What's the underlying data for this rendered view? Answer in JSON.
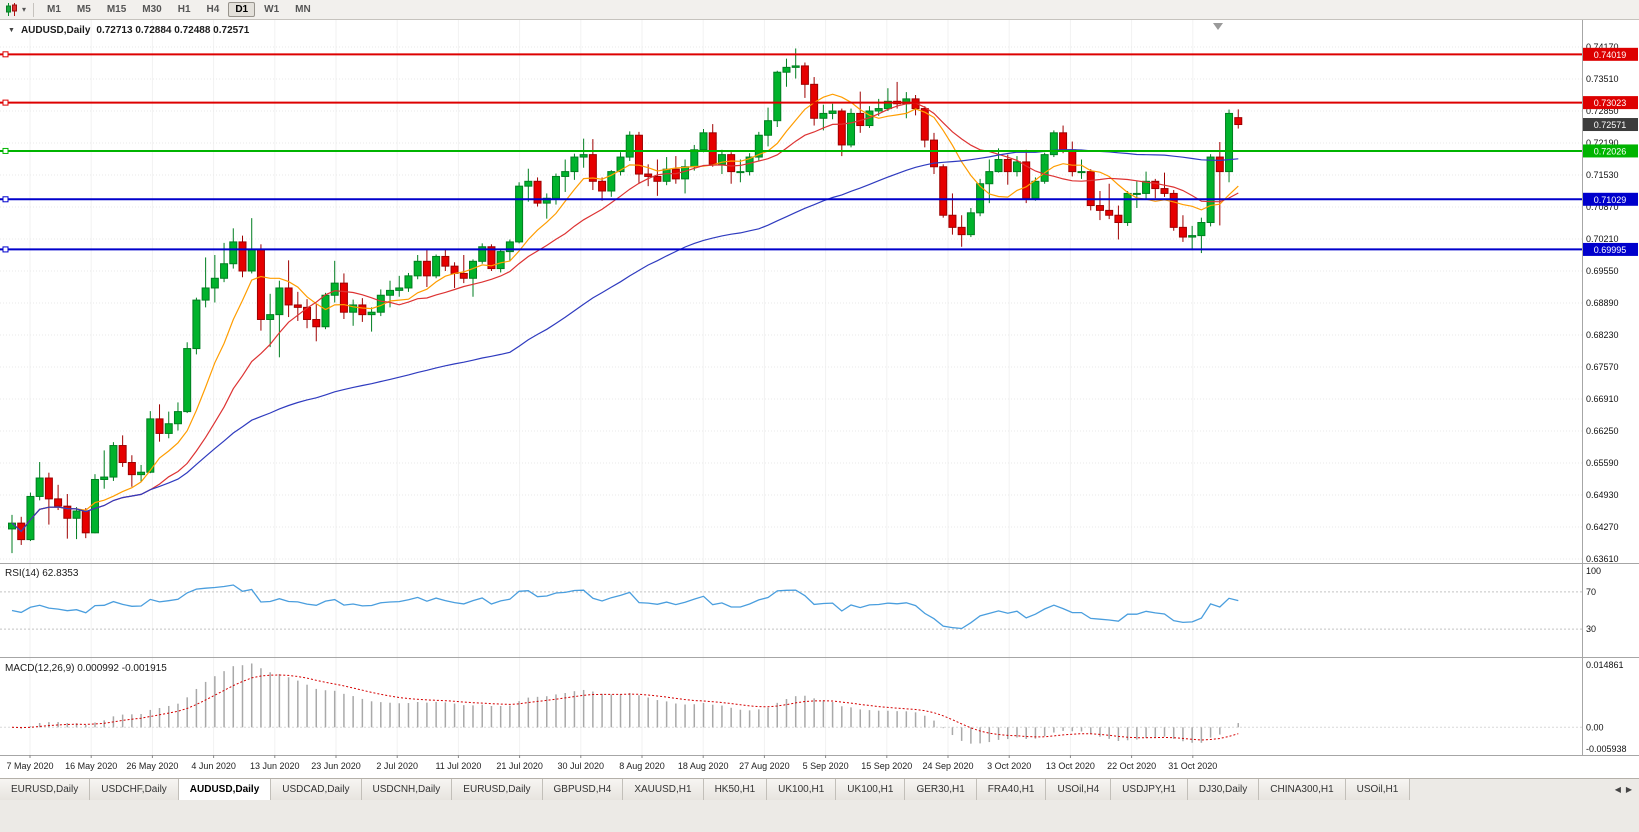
{
  "toolbar": {
    "timeframes": [
      {
        "label": "M1",
        "active": false
      },
      {
        "label": "M5",
        "active": false
      },
      {
        "label": "M15",
        "active": false
      },
      {
        "label": "M30",
        "active": false
      },
      {
        "label": "H1",
        "active": false
      },
      {
        "label": "H4",
        "active": false
      },
      {
        "label": "D1",
        "active": true
      },
      {
        "label": "W1",
        "active": false
      },
      {
        "label": "MN",
        "active": false
      }
    ]
  },
  "chart": {
    "title": "AUDUSD,Daily",
    "ohlc": "0.72713 0.72884 0.72488 0.72571"
  },
  "indicators_text": {
    "rsi_label": "RSI(14) 62.8353",
    "macd_label": "MACD(12,26,9) 0.000992 -0.001915"
  },
  "chart_data": {
    "type": "candlestick",
    "symbol": "AUDUSD",
    "timeframe": "Daily",
    "current_ohlc": {
      "open": 0.72713,
      "high": 0.72884,
      "low": 0.72488,
      "close": 0.72571
    },
    "price_axis_ticks": [
      0.7417,
      0.7351,
      0.7285,
      0.7219,
      0.7153,
      0.7087,
      0.7021,
      0.6955,
      0.6889,
      0.6823,
      0.6757,
      0.6691,
      0.6625,
      0.6559,
      0.6493,
      0.6427,
      0.6361
    ],
    "x_axis_dates": [
      "7 May 2020",
      "16 May 2020",
      "26 May 2020",
      "4 Jun 2020",
      "13 Jun 2020",
      "23 Jun 2020",
      "2 Jul 2020",
      "11 Jul 2020",
      "21 Jul 2020",
      "30 Jul 2020",
      "8 Aug 2020",
      "18 Aug 2020",
      "27 Aug 2020",
      "5 Sep 2020",
      "15 Sep 2020",
      "24 Sep 2020",
      "3 Oct 2020",
      "13 Oct 2020",
      "22 Oct 2020",
      "31 Oct 2020"
    ],
    "horizontal_lines": [
      {
        "value": 0.74019,
        "label": "0.74019",
        "color": "#dd0000",
        "kind": "resistance"
      },
      {
        "value": 0.73023,
        "label": "0.73023",
        "color": "#dd0000",
        "kind": "resistance"
      },
      {
        "value": 0.72026,
        "label": "0.72026",
        "color": "#00b400",
        "kind": "support"
      },
      {
        "value": 0.71029,
        "label": "0.71029",
        "color": "#0000cc",
        "kind": "support"
      },
      {
        "value": 0.69995,
        "label": "0.69995",
        "color": "#0000cc",
        "kind": "support"
      }
    ],
    "current_price": {
      "value": 0.72571,
      "label": "0.72571",
      "badge_color": "#3c3c3c"
    },
    "moving_averages": [
      {
        "period": 8,
        "color": "#ff9d00"
      },
      {
        "period": 16,
        "color": "#dd3333"
      },
      {
        "period": 55,
        "color": "#2f3bbf"
      }
    ],
    "rsi": {
      "period": 14,
      "value": 62.8353,
      "axis_labels": [
        "100",
        "70",
        "30"
      ],
      "levels": [
        70,
        30
      ]
    },
    "macd": {
      "fast": 12,
      "slow": 26,
      "signal": 9,
      "value": 0.000992,
      "signal_value": -0.001915,
      "axis_top": "0.014861",
      "axis_zero": "0.00",
      "axis_bottom": "-0.005938",
      "scale_max": 0.014861,
      "scale_min": -0.005938
    },
    "colors": {
      "bull": "#00b32c",
      "bull_border": "#007e20",
      "bear": "#e60000",
      "bear_border": "#9e0000",
      "grid": "#e9e9e9",
      "rsi_line": "#4a9ede",
      "rsi_level": "#c4c4c4",
      "macd_hist": "#a9a9a9",
      "macd_signal": "#d40000",
      "separator": "#a6a6a6",
      "current_badge": "#3c3c3c"
    },
    "candles": [
      [
        0.6423,
        0.6452,
        0.6373,
        0.6435
      ],
      [
        0.6435,
        0.6448,
        0.639,
        0.6401
      ],
      [
        0.6401,
        0.6498,
        0.6398,
        0.649
      ],
      [
        0.649,
        0.6561,
        0.6482,
        0.6528
      ],
      [
        0.6528,
        0.6539,
        0.6432,
        0.6485
      ],
      [
        0.6485,
        0.6514,
        0.6462,
        0.647
      ],
      [
        0.647,
        0.6495,
        0.6403,
        0.6445
      ],
      [
        0.6445,
        0.6468,
        0.6402,
        0.646
      ],
      [
        0.646,
        0.6466,
        0.6404,
        0.6415
      ],
      [
        0.6415,
        0.6536,
        0.6414,
        0.6525
      ],
      [
        0.6525,
        0.6585,
        0.6506,
        0.653
      ],
      [
        0.653,
        0.6602,
        0.6522,
        0.6595
      ],
      [
        0.6595,
        0.6616,
        0.6551,
        0.656
      ],
      [
        0.656,
        0.6575,
        0.651,
        0.6535
      ],
      [
        0.6535,
        0.6555,
        0.652,
        0.654
      ],
      [
        0.654,
        0.6666,
        0.6538,
        0.665
      ],
      [
        0.665,
        0.668,
        0.6603,
        0.662
      ],
      [
        0.662,
        0.6665,
        0.661,
        0.664
      ],
      [
        0.664,
        0.6684,
        0.6626,
        0.6665
      ],
      [
        0.6665,
        0.6808,
        0.6662,
        0.6795
      ],
      [
        0.6795,
        0.69,
        0.6783,
        0.6895
      ],
      [
        0.6895,
        0.6983,
        0.688,
        0.692
      ],
      [
        0.692,
        0.6988,
        0.689,
        0.694
      ],
      [
        0.694,
        0.7013,
        0.6932,
        0.697
      ],
      [
        0.697,
        0.7043,
        0.696,
        0.7015
      ],
      [
        0.7015,
        0.7028,
        0.6942,
        0.6955
      ],
      [
        0.6955,
        0.7064,
        0.695,
        0.7
      ],
      [
        0.7,
        0.701,
        0.6832,
        0.6855
      ],
      [
        0.6855,
        0.6908,
        0.6798,
        0.6865
      ],
      [
        0.6865,
        0.6935,
        0.6777,
        0.692
      ],
      [
        0.692,
        0.6977,
        0.686,
        0.6885
      ],
      [
        0.6885,
        0.6912,
        0.6852,
        0.688
      ],
      [
        0.688,
        0.6897,
        0.6837,
        0.6855
      ],
      [
        0.6855,
        0.6887,
        0.681,
        0.684
      ],
      [
        0.684,
        0.691,
        0.6835,
        0.6905
      ],
      [
        0.6905,
        0.6976,
        0.689,
        0.693
      ],
      [
        0.693,
        0.695,
        0.6856,
        0.687
      ],
      [
        0.687,
        0.6896,
        0.6842,
        0.6885
      ],
      [
        0.6885,
        0.6899,
        0.685,
        0.6865
      ],
      [
        0.6865,
        0.688,
        0.683,
        0.687
      ],
      [
        0.687,
        0.6917,
        0.6862,
        0.6905
      ],
      [
        0.6905,
        0.6935,
        0.688,
        0.6915
      ],
      [
        0.6915,
        0.6945,
        0.6902,
        0.692
      ],
      [
        0.692,
        0.6951,
        0.6912,
        0.6945
      ],
      [
        0.6945,
        0.6988,
        0.6938,
        0.6975
      ],
      [
        0.6975,
        0.6998,
        0.6922,
        0.6945
      ],
      [
        0.6945,
        0.6989,
        0.694,
        0.6985
      ],
      [
        0.6985,
        0.7001,
        0.6955,
        0.6965
      ],
      [
        0.6965,
        0.6973,
        0.692,
        0.695
      ],
      [
        0.695,
        0.6988,
        0.693,
        0.694
      ],
      [
        0.694,
        0.6979,
        0.6902,
        0.6975
      ],
      [
        0.6975,
        0.7012,
        0.697,
        0.7005
      ],
      [
        0.7005,
        0.701,
        0.6955,
        0.696
      ],
      [
        0.696,
        0.7001,
        0.6952,
        0.6995
      ],
      [
        0.6995,
        0.702,
        0.6975,
        0.7015
      ],
      [
        0.7015,
        0.7138,
        0.7012,
        0.713
      ],
      [
        0.713,
        0.7166,
        0.7098,
        0.714
      ],
      [
        0.714,
        0.7148,
        0.7088,
        0.7095
      ],
      [
        0.7095,
        0.7115,
        0.7063,
        0.7105
      ],
      [
        0.7105,
        0.7156,
        0.7092,
        0.715
      ],
      [
        0.715,
        0.7185,
        0.7118,
        0.716
      ],
      [
        0.716,
        0.7197,
        0.7143,
        0.719
      ],
      [
        0.719,
        0.7228,
        0.7168,
        0.7195
      ],
      [
        0.7195,
        0.7227,
        0.7122,
        0.714
      ],
      [
        0.714,
        0.7148,
        0.71,
        0.712
      ],
      [
        0.712,
        0.7163,
        0.7108,
        0.716
      ],
      [
        0.716,
        0.72,
        0.7152,
        0.719
      ],
      [
        0.719,
        0.7243,
        0.7182,
        0.7235
      ],
      [
        0.7235,
        0.7242,
        0.7136,
        0.7155
      ],
      [
        0.7155,
        0.7175,
        0.713,
        0.715
      ],
      [
        0.715,
        0.7185,
        0.711,
        0.714
      ],
      [
        0.714,
        0.719,
        0.7132,
        0.7165
      ],
      [
        0.7165,
        0.7192,
        0.7135,
        0.7145
      ],
      [
        0.7145,
        0.7185,
        0.7115,
        0.717
      ],
      [
        0.717,
        0.7215,
        0.7162,
        0.7205
      ],
      [
        0.7205,
        0.7248,
        0.72,
        0.724
      ],
      [
        0.724,
        0.7258,
        0.717,
        0.7175
      ],
      [
        0.7175,
        0.7205,
        0.7155,
        0.7195
      ],
      [
        0.7195,
        0.72,
        0.7135,
        0.716
      ],
      [
        0.716,
        0.7185,
        0.7138,
        0.716
      ],
      [
        0.716,
        0.7198,
        0.7152,
        0.719
      ],
      [
        0.719,
        0.7242,
        0.7182,
        0.7235
      ],
      [
        0.7235,
        0.7292,
        0.7212,
        0.7265
      ],
      [
        0.7265,
        0.7368,
        0.7252,
        0.7365
      ],
      [
        0.7365,
        0.7393,
        0.7335,
        0.7375
      ],
      [
        0.7375,
        0.7414,
        0.7352,
        0.7378
      ],
      [
        0.7378,
        0.7385,
        0.7312,
        0.734
      ],
      [
        0.734,
        0.7355,
        0.7255,
        0.727
      ],
      [
        0.727,
        0.7298,
        0.7245,
        0.728
      ],
      [
        0.728,
        0.73,
        0.7268,
        0.7285
      ],
      [
        0.7285,
        0.729,
        0.7192,
        0.7215
      ],
      [
        0.7215,
        0.729,
        0.721,
        0.728
      ],
      [
        0.728,
        0.7325,
        0.724,
        0.7255
      ],
      [
        0.7255,
        0.7295,
        0.725,
        0.7285
      ],
      [
        0.7285,
        0.731,
        0.7275,
        0.729
      ],
      [
        0.729,
        0.7332,
        0.7285,
        0.7305
      ],
      [
        0.7305,
        0.7345,
        0.729,
        0.73
      ],
      [
        0.73,
        0.7324,
        0.727,
        0.731
      ],
      [
        0.731,
        0.7318,
        0.7276,
        0.729
      ],
      [
        0.729,
        0.7295,
        0.721,
        0.7225
      ],
      [
        0.7225,
        0.724,
        0.7155,
        0.717
      ],
      [
        0.717,
        0.7175,
        0.7065,
        0.707
      ],
      [
        0.707,
        0.7115,
        0.703,
        0.7045
      ],
      [
        0.7045,
        0.707,
        0.7005,
        0.703
      ],
      [
        0.703,
        0.7085,
        0.7025,
        0.7075
      ],
      [
        0.7075,
        0.7145,
        0.7068,
        0.7135
      ],
      [
        0.7135,
        0.7185,
        0.7095,
        0.716
      ],
      [
        0.716,
        0.7208,
        0.7158,
        0.7185
      ],
      [
        0.7185,
        0.7195,
        0.7133,
        0.716
      ],
      [
        0.716,
        0.7192,
        0.715,
        0.718
      ],
      [
        0.718,
        0.7205,
        0.7095,
        0.7105
      ],
      [
        0.7105,
        0.7148,
        0.71,
        0.714
      ],
      [
        0.714,
        0.7199,
        0.7135,
        0.7195
      ],
      [
        0.7195,
        0.7245,
        0.719,
        0.724
      ],
      [
        0.724,
        0.7255,
        0.7198,
        0.7205
      ],
      [
        0.7205,
        0.7222,
        0.715,
        0.716
      ],
      [
        0.716,
        0.7185,
        0.7145,
        0.716
      ],
      [
        0.716,
        0.7165,
        0.708,
        0.709
      ],
      [
        0.709,
        0.712,
        0.706,
        0.708
      ],
      [
        0.708,
        0.7135,
        0.7062,
        0.707
      ],
      [
        0.707,
        0.709,
        0.702,
        0.7055
      ],
      [
        0.7055,
        0.712,
        0.7048,
        0.7115
      ],
      [
        0.7115,
        0.714,
        0.7085,
        0.7115
      ],
      [
        0.7115,
        0.716,
        0.7102,
        0.714
      ],
      [
        0.714,
        0.7145,
        0.7105,
        0.7125
      ],
      [
        0.7125,
        0.7158,
        0.7108,
        0.7115
      ],
      [
        0.7115,
        0.7122,
        0.7038,
        0.7045
      ],
      [
        0.7045,
        0.707,
        0.7015,
        0.7025
      ],
      [
        0.7025,
        0.7048,
        0.6998,
        0.7028
      ],
      [
        0.7028,
        0.7065,
        0.6992,
        0.7055
      ],
      [
        0.7055,
        0.7196,
        0.7047,
        0.719
      ],
      [
        0.719,
        0.7221,
        0.7049,
        0.716
      ],
      [
        0.716,
        0.7288,
        0.7138,
        0.728
      ],
      [
        0.72713,
        0.72884,
        0.72488,
        0.72571
      ]
    ]
  },
  "tabs": [
    {
      "label": "EURUSD,Daily",
      "active": false
    },
    {
      "label": "USDCHF,Daily",
      "active": false
    },
    {
      "label": "AUDUSD,Daily",
      "active": true
    },
    {
      "label": "USDCAD,Daily",
      "active": false
    },
    {
      "label": "USDCNH,Daily",
      "active": false
    },
    {
      "label": "EURUSD,Daily",
      "active": false
    },
    {
      "label": "GBPUSD,H4",
      "active": false
    },
    {
      "label": "XAUUSD,H1",
      "active": false
    },
    {
      "label": "HK50,H1",
      "active": false
    },
    {
      "label": "UK100,H1",
      "active": false
    },
    {
      "label": "UK100,H1",
      "active": false
    },
    {
      "label": "GER30,H1",
      "active": false
    },
    {
      "label": "FRA40,H1",
      "active": false
    },
    {
      "label": "USOil,H4",
      "active": false
    },
    {
      "label": "USDJPY,H1",
      "active": false
    },
    {
      "label": "DJ30,Daily",
      "active": false
    },
    {
      "label": "CHINA300,H1",
      "active": false
    },
    {
      "label": "USOil,H1",
      "active": false
    }
  ]
}
